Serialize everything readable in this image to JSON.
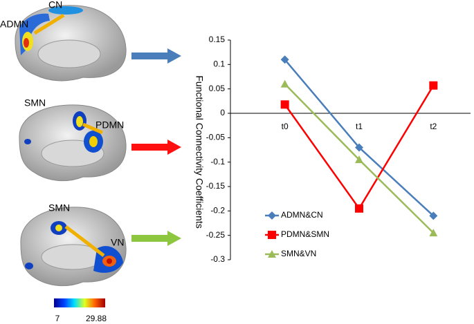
{
  "panels": [
    {
      "labels": [
        "ADMN",
        "CN"
      ]
    },
    {
      "labels": [
        "SMN",
        "PDMN"
      ]
    },
    {
      "labels": [
        "SMN",
        "VN"
      ]
    }
  ],
  "colorbar": {
    "min": 7,
    "max": 29.88
  },
  "chart_data": {
    "type": "line",
    "y_label": "Functional Connectivity Coefficients",
    "categories": [
      "t0",
      "t1",
      "t2"
    ],
    "series": [
      {
        "name": "ADMN&CN",
        "color": "#4a7ebb",
        "marker": "diamond",
        "values": [
          0.11,
          -0.07,
          -0.21
        ]
      },
      {
        "name": "PDMN&SMN",
        "color": "#ff0000",
        "marker": "square",
        "values": [
          0.018,
          -0.195,
          0.057
        ]
      },
      {
        "name": "SMN&VN",
        "color": "#9bbb59",
        "marker": "triangle",
        "values": [
          0.06,
          -0.095,
          -0.245
        ]
      }
    ],
    "ylim": [
      -0.3,
      0.15
    ],
    "yticks": [
      -0.3,
      -0.25,
      -0.2,
      -0.15,
      -0.1,
      -0.05,
      0,
      0.05,
      0.1,
      0.15
    ],
    "legend": "lower-center"
  }
}
